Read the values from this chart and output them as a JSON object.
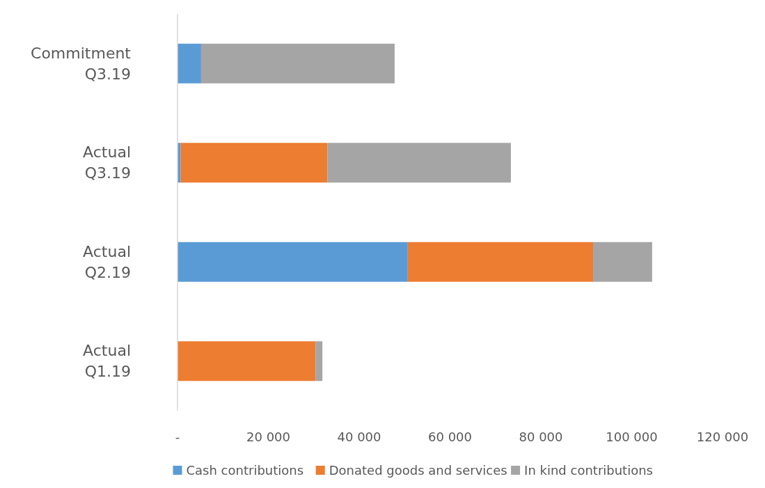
{
  "chart_data": {
    "type": "bar",
    "orientation": "horizontal",
    "stacked": true,
    "categories": [
      "Commitment Q3.19",
      "Actual Q3.19",
      "Actual Q2.19",
      "Actual Q1.19"
    ],
    "series": [
      {
        "name": "Cash contributions",
        "color": "#5b9bd5",
        "values": [
          5200,
          700,
          50700,
          0
        ]
      },
      {
        "name": "Donated goods and services",
        "color": "#ed7d31",
        "values": [
          0,
          32300,
          40800,
          30400
        ]
      },
      {
        "name": "In kind contributions",
        "color": "#a5a5a5",
        "values": [
          42600,
          40400,
          13000,
          1500
        ]
      }
    ],
    "xlim": [
      0,
      120000
    ],
    "xticks": [
      {
        "value": 0,
        "label": "-"
      },
      {
        "value": 20000,
        "label": "20 000"
      },
      {
        "value": 40000,
        "label": "40 000"
      },
      {
        "value": 60000,
        "label": "60 000"
      },
      {
        "value": 80000,
        "label": "80 000"
      },
      {
        "value": 100000,
        "label": "100 000"
      },
      {
        "value": 120000,
        "label": "120 000"
      }
    ],
    "grid": false,
    "legend": "bottom"
  }
}
